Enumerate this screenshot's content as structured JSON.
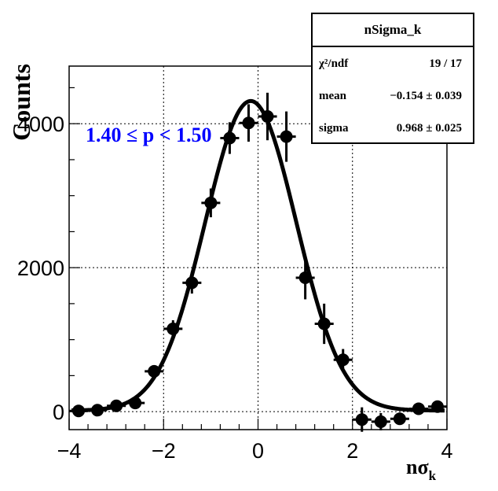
{
  "chart_data": {
    "type": "scatter",
    "title": "",
    "xlabel_main": "nσ",
    "xlabel_sub": "k",
    "ylabel": "Counts",
    "xlim": [
      -4,
      4
    ],
    "ylim": [
      -250,
      4800
    ],
    "grid": true,
    "x_ticks": [
      -4,
      -2,
      0,
      2,
      4
    ],
    "x_tick_labels": [
      "−4",
      "−2",
      "0",
      "2",
      "4"
    ],
    "y_ticks": [
      0,
      2000,
      4000
    ],
    "y_tick_labels": [
      "0",
      "2000",
      "4000"
    ],
    "annotation": "1.40  ≤ p < 1.50",
    "annotation_color": "#0000ff",
    "series": [
      {
        "points": [
          {
            "x": -3.8,
            "y": 10,
            "xerr": 0.2,
            "yerr": 30
          },
          {
            "x": -3.4,
            "y": 20,
            "xerr": 0.2,
            "yerr": 30
          },
          {
            "x": -3.0,
            "y": 80,
            "xerr": 0.2,
            "yerr": 40
          },
          {
            "x": -2.6,
            "y": 120,
            "xerr": 0.2,
            "yerr": 60
          },
          {
            "x": -2.2,
            "y": 560,
            "xerr": 0.2,
            "yerr": 80
          },
          {
            "x": -1.8,
            "y": 1150,
            "xerr": 0.2,
            "yerr": 120
          },
          {
            "x": -1.4,
            "y": 1790,
            "xerr": 0.2,
            "yerr": 150
          },
          {
            "x": -1.0,
            "y": 2900,
            "xerr": 0.2,
            "yerr": 200
          },
          {
            "x": -0.6,
            "y": 3800,
            "xerr": 0.2,
            "yerr": 220
          },
          {
            "x": -0.2,
            "y": 4010,
            "xerr": 0.2,
            "yerr": 260
          },
          {
            "x": 0.2,
            "y": 4100,
            "xerr": 0.2,
            "yerr": 330
          },
          {
            "x": 0.6,
            "y": 3820,
            "xerr": 0.2,
            "yerr": 350
          },
          {
            "x": 1.0,
            "y": 1860,
            "xerr": 0.2,
            "yerr": 300
          },
          {
            "x": 1.4,
            "y": 1220,
            "xerr": 0.2,
            "yerr": 280
          },
          {
            "x": 1.8,
            "y": 720,
            "xerr": 0.2,
            "yerr": 150
          },
          {
            "x": 2.2,
            "y": -110,
            "xerr": 0.2,
            "yerr": 170
          },
          {
            "x": 2.6,
            "y": -140,
            "xerr": 0.2,
            "yerr": 120
          },
          {
            "x": 3.0,
            "y": -100,
            "xerr": 0.2,
            "yerr": 80
          },
          {
            "x": 3.4,
            "y": 40,
            "xerr": 0.2,
            "yerr": 40
          },
          {
            "x": 3.8,
            "y": 70,
            "xerr": 0.2,
            "yerr": 40
          }
        ]
      }
    ],
    "fit": {
      "function": "gaussian",
      "amplitude": 4300,
      "mean": -0.154,
      "sigma": 0.968,
      "baseline": 15
    }
  },
  "stats": {
    "title": "nSigma_k",
    "rows": [
      {
        "label": "χ²/ndf",
        "value": "19 / 17"
      },
      {
        "label": "mean",
        "value": "−0.154  ± 0.039"
      },
      {
        "label": "sigma",
        "value": "0.968  ± 0.025"
      }
    ]
  }
}
